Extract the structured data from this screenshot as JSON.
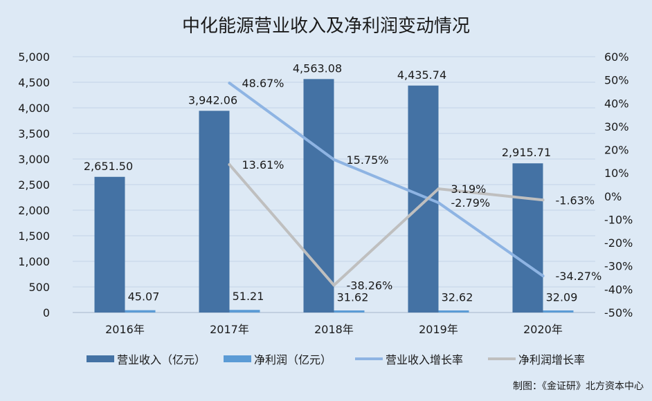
{
  "chart_data": {
    "type": "bar",
    "title": "中化能源营业收入及净利润变动情况",
    "categories": [
      "2016年",
      "2017年",
      "2018年",
      "2019年",
      "2020年"
    ],
    "series": [
      {
        "name": "营业收入（亿元）",
        "kind": "bar",
        "axis": "left",
        "color": "#4472a4",
        "values": [
          2651.5,
          3942.06,
          4563.08,
          4435.74,
          2915.71
        ],
        "labels": [
          "2,651.50",
          "3,942.06",
          "4,563.08",
          "4,435.74",
          "2,915.71"
        ]
      },
      {
        "name": "净利润（亿元）",
        "kind": "bar",
        "axis": "left",
        "color": "#5b9bd5",
        "values": [
          45.07,
          51.21,
          31.62,
          32.62,
          32.09
        ],
        "labels": [
          "45.07",
          "51.21",
          "31.62",
          "32.62",
          "32.09"
        ]
      },
      {
        "name": "营业收入增长率",
        "kind": "line",
        "axis": "right",
        "color": "#8eb4e3",
        "values": [
          null,
          48.67,
          15.75,
          -2.79,
          -34.27
        ],
        "labels": [
          null,
          "48.67%",
          "15.75%",
          "-2.79%",
          "-34.27%"
        ]
      },
      {
        "name": "净利润增长率",
        "kind": "line",
        "axis": "right",
        "color": "#bfbfbf",
        "values": [
          null,
          13.61,
          -38.26,
          3.19,
          -1.63
        ],
        "labels": [
          null,
          "13.61%",
          "-38.26%",
          "3.19%",
          "-1.63%"
        ]
      }
    ],
    "y_left": {
      "min": 0,
      "max": 5000,
      "ticks": [
        0,
        500,
        1000,
        1500,
        2000,
        2500,
        3000,
        3500,
        4000,
        4500,
        5000
      ],
      "tick_labels": [
        "0",
        "500",
        "1,000",
        "1,500",
        "2,000",
        "2,500",
        "3,000",
        "3,500",
        "4,000",
        "4,500",
        "5,000"
      ]
    },
    "y_right": {
      "min": -50,
      "max": 60,
      "ticks": [
        -50,
        -40,
        -30,
        -20,
        -10,
        0,
        10,
        20,
        30,
        40,
        50,
        60
      ],
      "tick_labels": [
        "-50%",
        "-40%",
        "-30%",
        "-20%",
        "-10%",
        "0%",
        "10%",
        "20%",
        "30%",
        "40%",
        "50%",
        "60%"
      ]
    },
    "grid": true,
    "legend_position": "bottom",
    "source": "制图：《金证研》北方资本中心"
  }
}
